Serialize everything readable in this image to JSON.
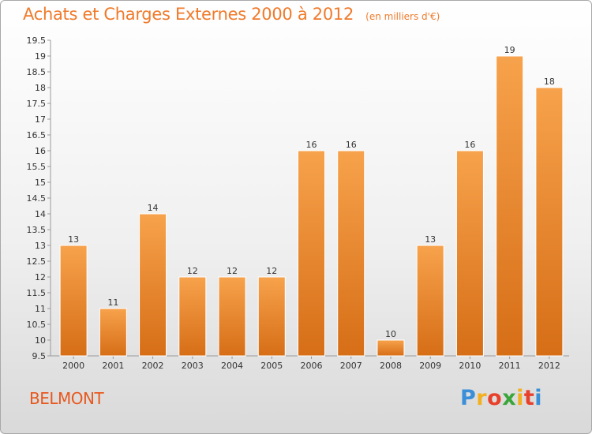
{
  "header": {
    "title": "Achats et Charges Externes 2000 à 2012",
    "unit": "(en milliers d'€)"
  },
  "footer": {
    "commune": "BELMONT",
    "brand_letters": [
      "P",
      "r",
      "o",
      "x",
      "i",
      "t",
      "i"
    ],
    "brand_colors": [
      "#3b8fd9",
      "#f2b01e",
      "#e8402a",
      "#3aa63a",
      "#f2b01e",
      "#e8402a",
      "#3b8fd9"
    ]
  },
  "chart_data": {
    "type": "bar",
    "title": "Achats et Charges Externes 2000 à 2012",
    "subtitle": "(en milliers d'€)",
    "categories": [
      "2000",
      "2001",
      "2002",
      "2003",
      "2004",
      "2005",
      "2006",
      "2007",
      "2008",
      "2009",
      "2010",
      "2011",
      "2012"
    ],
    "values": [
      13,
      11,
      14,
      12,
      12,
      12,
      16,
      16,
      10,
      13,
      16,
      19,
      18
    ],
    "value_labels": [
      "13",
      "11",
      "14",
      "12",
      "12",
      "12",
      "16",
      "16",
      "10",
      "13",
      "16",
      "19",
      "18"
    ],
    "ylim": [
      9.5,
      19.5
    ],
    "yticks": [
      "9.5",
      "10",
      "10.5",
      "11",
      "11.5",
      "12",
      "12.5",
      "13",
      "13.5",
      "14",
      "14.5",
      "15",
      "15.5",
      "16",
      "16.5",
      "17",
      "17.5",
      "18",
      "18.5",
      "19",
      "19.5"
    ],
    "bar_color_top": "#f7a24c",
    "bar_color_bottom": "#d66e16",
    "grid": false,
    "legend": "none"
  }
}
